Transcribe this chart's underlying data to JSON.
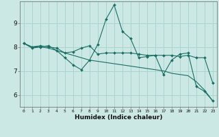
{
  "xlabel": "Humidex (Indice chaleur)",
  "background_color": "#cce8e4",
  "grid_color": "#a8d4cf",
  "line_color": "#1a6e64",
  "x_values": [
    0,
    1,
    2,
    3,
    4,
    5,
    6,
    7,
    8,
    9,
    10,
    11,
    12,
    13,
    14,
    15,
    16,
    17,
    18,
    19,
    20,
    21,
    22,
    23
  ],
  "line1": [
    8.15,
    7.95,
    8.0,
    8.05,
    7.85,
    7.55,
    7.25,
    7.05,
    7.45,
    8.1,
    9.15,
    9.75,
    8.65,
    8.35,
    7.55,
    7.6,
    7.65,
    6.85,
    7.45,
    7.7,
    7.75,
    6.35,
    6.15,
    5.75
  ],
  "line2": [
    8.15,
    8.0,
    8.05,
    8.0,
    7.95,
    7.75,
    7.8,
    7.95,
    8.05,
    7.7,
    7.75,
    7.75,
    7.75,
    7.75,
    7.7,
    7.65,
    7.65,
    7.65,
    7.65,
    7.6,
    7.65,
    7.55,
    7.55,
    6.5
  ],
  "line3": [
    8.15,
    8.0,
    8.0,
    7.95,
    7.85,
    7.75,
    7.65,
    7.55,
    7.45,
    7.4,
    7.35,
    7.3,
    7.25,
    7.2,
    7.15,
    7.1,
    7.05,
    7.0,
    6.9,
    6.85,
    6.8,
    6.55,
    6.2,
    5.75
  ],
  "ylim": [
    5.5,
    9.9
  ],
  "yticks": [
    6,
    7,
    8,
    9
  ],
  "xticks": [
    0,
    1,
    2,
    3,
    4,
    5,
    6,
    7,
    8,
    9,
    10,
    11,
    12,
    13,
    14,
    15,
    16,
    17,
    18,
    19,
    20,
    21,
    22,
    23
  ]
}
